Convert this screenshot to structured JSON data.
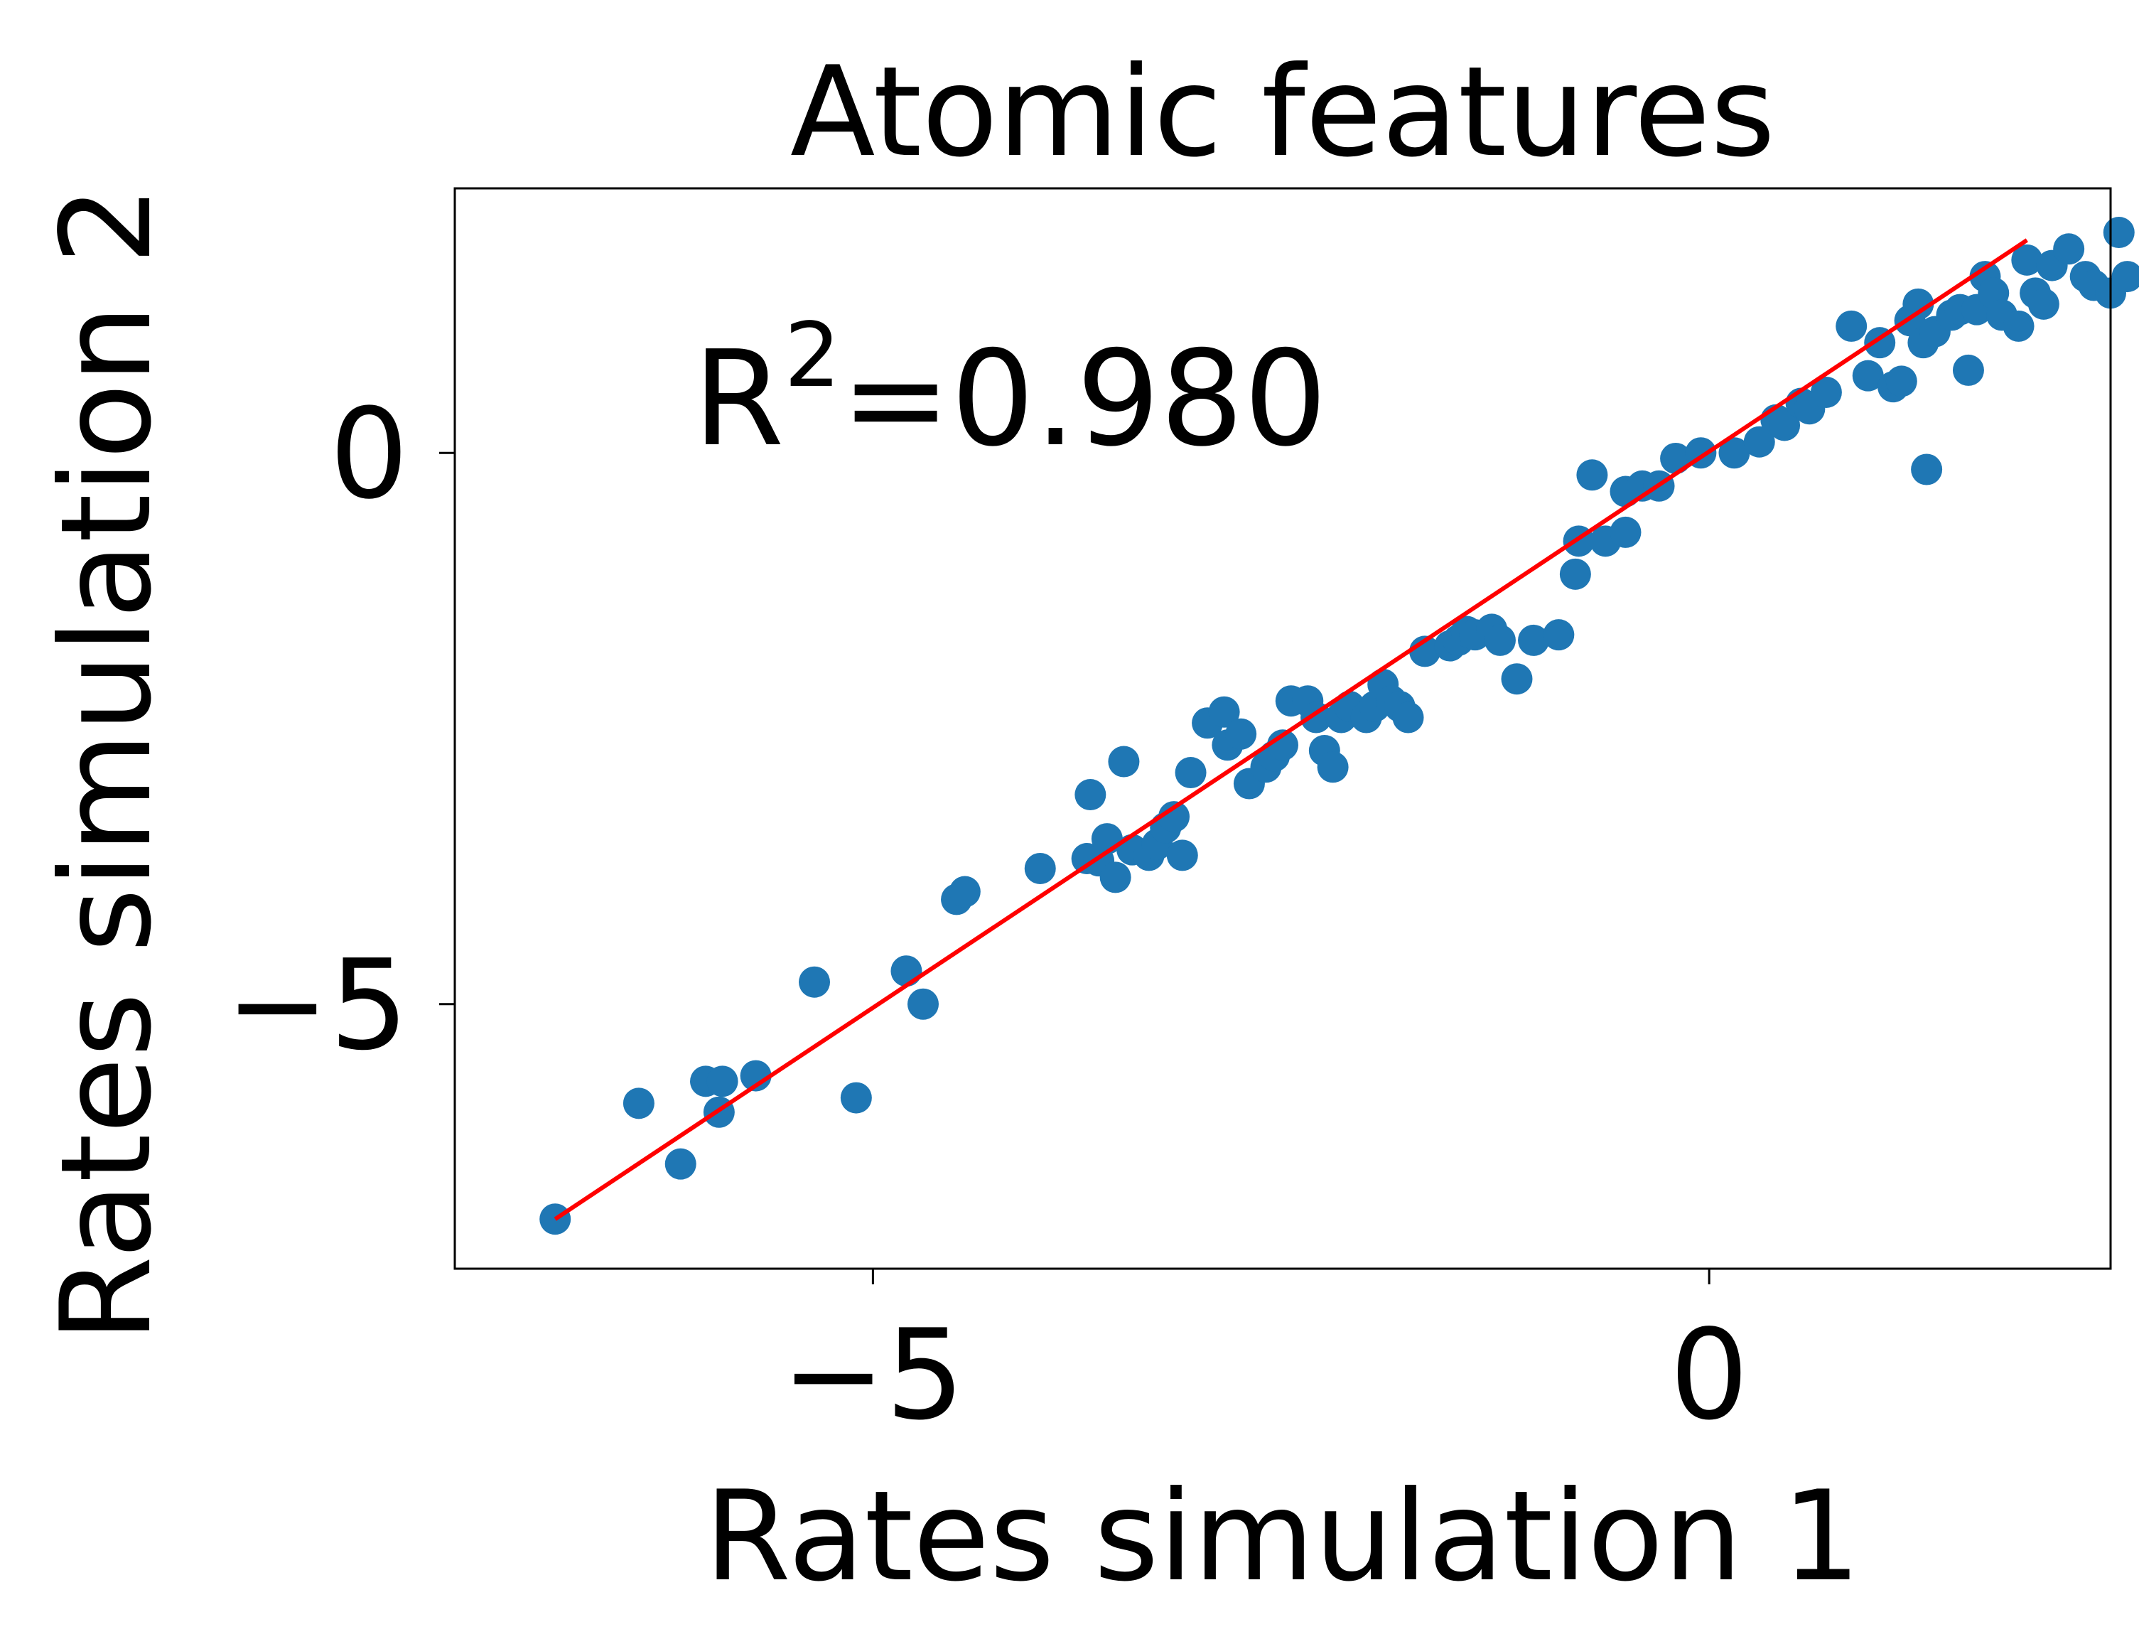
{
  "chart_data": {
    "type": "scatter",
    "title": "Atomic features",
    "xlabel": "Rates simulation 1",
    "ylabel": "Rates simulation 2",
    "xlim": [
      -7.5,
      2.4
    ],
    "ylim": [
      -7.4,
      2.4
    ],
    "xticks": [
      {
        "value": -5,
        "label": "−5"
      },
      {
        "value": 0,
        "label": "0"
      }
    ],
    "yticks": [
      {
        "value": 0,
        "label": "0"
      },
      {
        "value": -5,
        "label": "−5"
      }
    ],
    "annotation": {
      "base": "R",
      "sup": "2",
      "rest": "=0.980"
    },
    "point_color": "#1f77b4",
    "line_color": "#ff0000",
    "grid": false,
    "fit_line": {
      "x": [
        -6.9,
        1.9
      ],
      "y": [
        -6.95,
        1.93
      ]
    },
    "points": [
      [
        -6.9,
        -6.95
      ],
      [
        -6.4,
        -5.9
      ],
      [
        -6.15,
        -6.45
      ],
      [
        -6.0,
        -5.7
      ],
      [
        -5.9,
        -5.7
      ],
      [
        -5.92,
        -5.98
      ],
      [
        -5.7,
        -5.65
      ],
      [
        -5.35,
        -4.8
      ],
      [
        -5.1,
        -5.85
      ],
      [
        -4.8,
        -4.7
      ],
      [
        -4.7,
        -5.0
      ],
      [
        -4.5,
        -4.05
      ],
      [
        -4.45,
        -3.98
      ],
      [
        -4.0,
        -3.77
      ],
      [
        -3.7,
        -3.1
      ],
      [
        -3.72,
        -3.68
      ],
      [
        -3.65,
        -3.7
      ],
      [
        -3.6,
        -3.5
      ],
      [
        -3.55,
        -3.85
      ],
      [
        -3.5,
        -2.8
      ],
      [
        -3.45,
        -3.6
      ],
      [
        -3.35,
        -3.65
      ],
      [
        -3.3,
        -3.55
      ],
      [
        -3.25,
        -3.4
      ],
      [
        -3.2,
        -3.3
      ],
      [
        -3.15,
        -3.65
      ],
      [
        -3.1,
        -2.9
      ],
      [
        -3.0,
        -2.45
      ],
      [
        -2.9,
        -2.35
      ],
      [
        -2.88,
        -2.65
      ],
      [
        -2.8,
        -2.55
      ],
      [
        -2.75,
        -3.0
      ],
      [
        -2.65,
        -2.85
      ],
      [
        -2.6,
        -2.75
      ],
      [
        -2.55,
        -2.65
      ],
      [
        -2.5,
        -2.25
      ],
      [
        -2.4,
        -2.25
      ],
      [
        -2.35,
        -2.4
      ],
      [
        -2.3,
        -2.7
      ],
      [
        -2.25,
        -2.85
      ],
      [
        -2.2,
        -2.4
      ],
      [
        -2.15,
        -2.3
      ],
      [
        -2.05,
        -2.4
      ],
      [
        -2.0,
        -2.3
      ],
      [
        -1.95,
        -2.1
      ],
      [
        -1.9,
        -2.25
      ],
      [
        -1.85,
        -2.3
      ],
      [
        -1.8,
        -2.4
      ],
      [
        -1.7,
        -1.8
      ],
      [
        -1.55,
        -1.75
      ],
      [
        -1.5,
        -1.7
      ],
      [
        -1.45,
        -1.62
      ],
      [
        -1.4,
        -1.65
      ],
      [
        -1.3,
        -1.6
      ],
      [
        -1.25,
        -1.7
      ],
      [
        -1.15,
        -2.05
      ],
      [
        -1.05,
        -1.7
      ],
      [
        -0.9,
        -1.65
      ],
      [
        -0.8,
        -1.1
      ],
      [
        -0.78,
        -0.8
      ],
      [
        -0.7,
        -0.2
      ],
      [
        -0.62,
        -0.8
      ],
      [
        -0.5,
        -0.72
      ],
      [
        -0.5,
        -0.35
      ],
      [
        -0.4,
        -0.3
      ],
      [
        -0.3,
        -0.3
      ],
      [
        -0.2,
        -0.05
      ],
      [
        -0.05,
        0.0
      ],
      [
        0.15,
        0.0
      ],
      [
        0.3,
        0.1
      ],
      [
        0.4,
        0.3
      ],
      [
        0.45,
        0.25
      ],
      [
        0.55,
        0.45
      ],
      [
        0.6,
        0.4
      ],
      [
        0.7,
        0.55
      ],
      [
        0.85,
        1.15
      ],
      [
        0.95,
        0.7
      ],
      [
        1.02,
        1.0
      ],
      [
        1.1,
        0.6
      ],
      [
        1.15,
        0.65
      ],
      [
        1.2,
        1.2
      ],
      [
        1.25,
        1.35
      ],
      [
        1.28,
        1.0
      ],
      [
        1.3,
        -0.15
      ],
      [
        1.35,
        1.1
      ],
      [
        1.45,
        1.25
      ],
      [
        1.5,
        1.3
      ],
      [
        1.55,
        0.75
      ],
      [
        1.6,
        1.3
      ],
      [
        1.65,
        1.6
      ],
      [
        1.7,
        1.45
      ],
      [
        1.75,
        1.25
      ],
      [
        1.85,
        1.15
      ],
      [
        1.9,
        1.75
      ],
      [
        1.95,
        1.45
      ],
      [
        2.0,
        1.35
      ],
      [
        2.05,
        1.7
      ],
      [
        2.15,
        1.85
      ],
      [
        2.25,
        1.6
      ],
      [
        2.3,
        1.52
      ],
      [
        2.4,
        1.45
      ],
      [
        2.45,
        2.0
      ],
      [
        2.5,
        1.6
      ]
    ]
  }
}
